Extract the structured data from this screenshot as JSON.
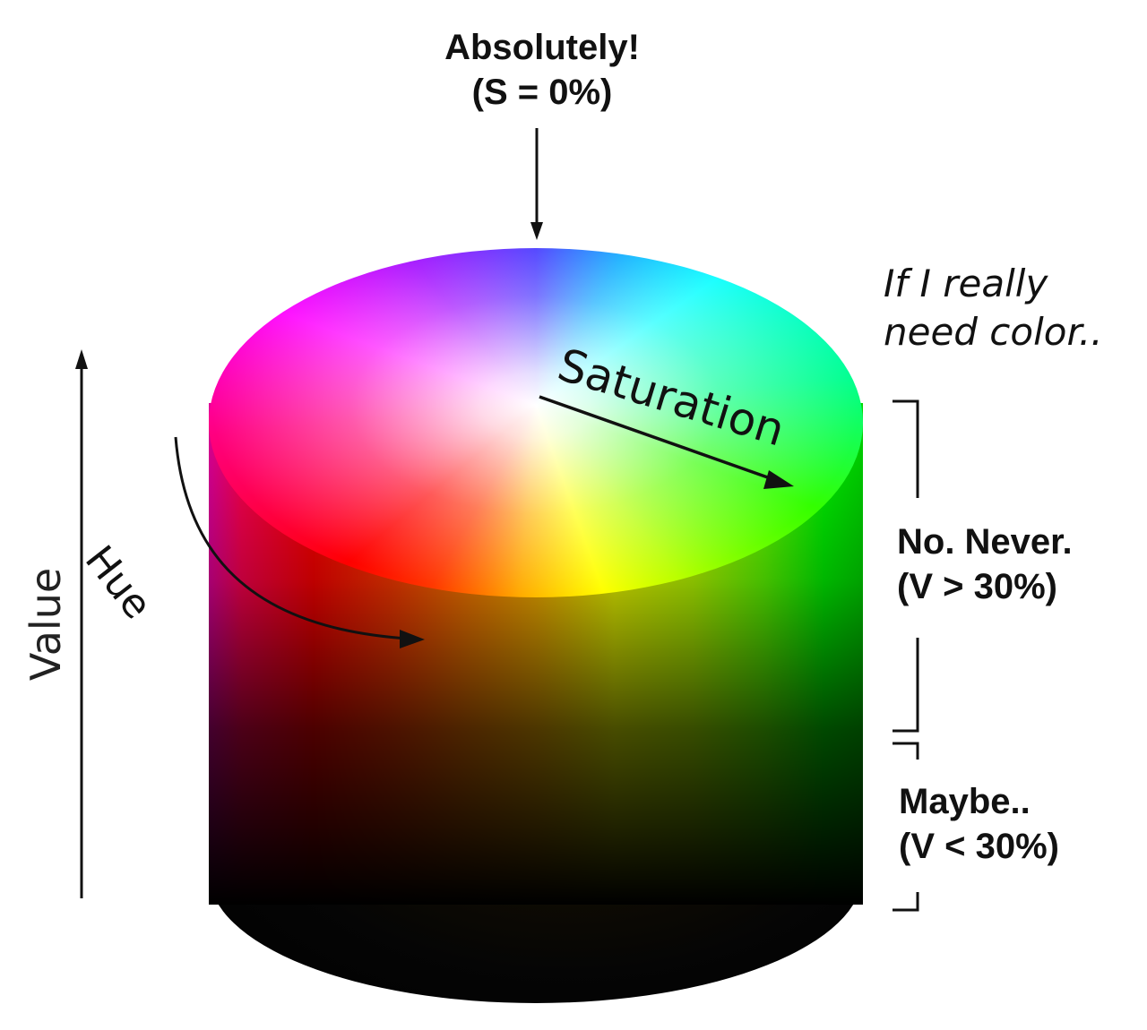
{
  "annotations": {
    "top_line1": "Absolutely!",
    "top_line2": "(S = 0%)",
    "side_line1": "If I really",
    "side_line2": "need color..",
    "mid_line1": "No. Never.",
    "mid_line2": "(V > 30%)",
    "low_line1": "Maybe..",
    "low_line2": "(V < 30%)"
  },
  "axes": {
    "value": "Value",
    "hue": "Hue",
    "saturation": "Saturation"
  },
  "colors": {
    "text": "#111111",
    "background": "#ffffff"
  }
}
